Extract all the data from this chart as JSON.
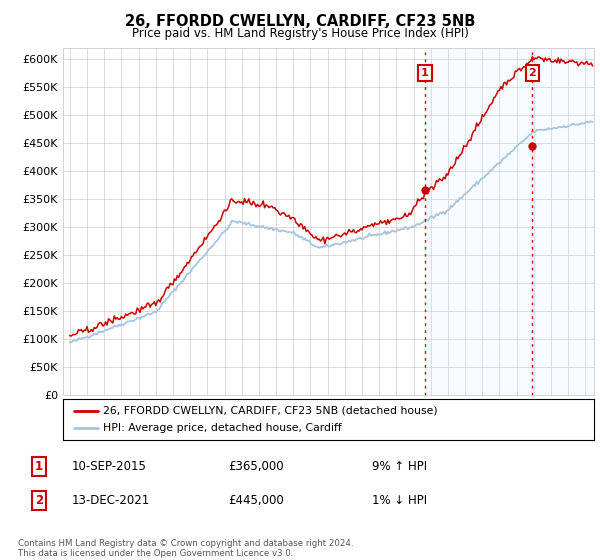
{
  "title": "26, FFORDD CWELLYN, CARDIFF, CF23 5NB",
  "subtitle": "Price paid vs. HM Land Registry's House Price Index (HPI)",
  "ylim": [
    0,
    620000
  ],
  "ytick_values": [
    0,
    50000,
    100000,
    150000,
    200000,
    250000,
    300000,
    350000,
    400000,
    450000,
    500000,
    550000,
    600000
  ],
  "sale1_date": "10-SEP-2015",
  "sale1_price": 365000,
  "sale1_hpi_pct": "9%",
  "sale1_hpi_dir": "↑",
  "sale2_date": "13-DEC-2021",
  "sale2_price": 445000,
  "sale2_hpi_pct": "1%",
  "sale2_hpi_dir": "↓",
  "legend_line1": "26, FFORDD CWELLYN, CARDIFF, CF23 5NB (detached house)",
  "legend_line2": "HPI: Average price, detached house, Cardiff",
  "footnote": "Contains HM Land Registry data © Crown copyright and database right 2024.\nThis data is licensed under the Open Government Licence v3.0.",
  "hpi_color": "#a8c4e0",
  "price_color": "#cc0000",
  "bg_color": "#ffffff",
  "plot_bg": "#ffffff",
  "grid_color": "#cccccc",
  "sale_vline_color": "#cc0000",
  "marker_box_color": "#cc0000",
  "shade_color": "#ddeeff",
  "xstart_year": 1995,
  "xend_year": 2025
}
